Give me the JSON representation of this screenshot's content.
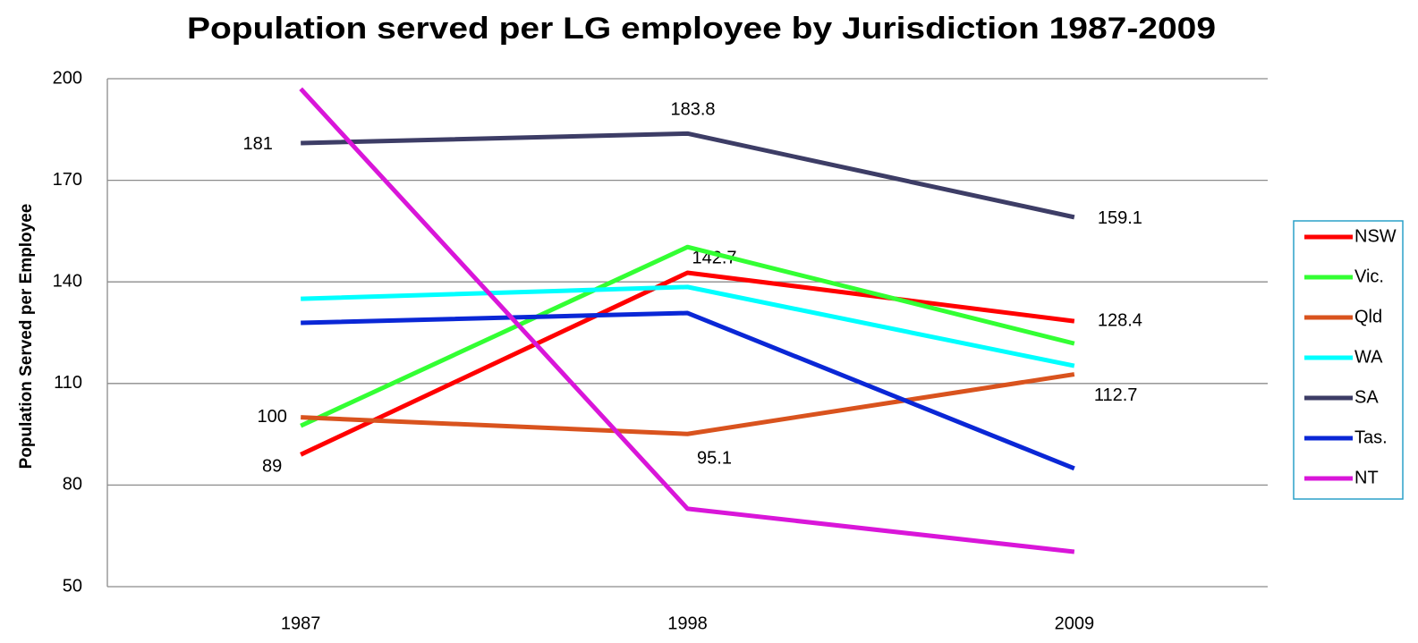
{
  "chart_data": {
    "type": "line",
    "title": "Population served per LG employee by Jurisdiction 1987-2009",
    "y_label": "Population Served per Employee",
    "categories": [
      "1987",
      "1998",
      "2009"
    ],
    "ylim": [
      50,
      200
    ],
    "yticks": [
      50,
      80,
      110,
      140,
      170,
      200
    ],
    "grid": true,
    "legend": "right",
    "series": [
      {
        "name": "NSW",
        "color": "#ff0000",
        "values": [
          89,
          142.7,
          128.4
        ],
        "data_labels": true
      },
      {
        "name": "Vic.",
        "color": "#33ff33",
        "values": [
          97.5,
          150.3,
          121.8
        ]
      },
      {
        "name": "Qld",
        "color": "#d9531e",
        "values": [
          100,
          95.1,
          112.7
        ],
        "data_labels": true
      },
      {
        "name": "WA",
        "color": "#00ffff",
        "values": [
          135,
          138.5,
          115.2
        ]
      },
      {
        "name": "SA",
        "color": "#3d3d66",
        "values": [
          181,
          183.8,
          159.1
        ],
        "data_labels": true
      },
      {
        "name": "Tas.",
        "color": "#0a27d6",
        "values": [
          127.9,
          130.8,
          84.9
        ]
      },
      {
        "name": "NT",
        "color": "#d916d9",
        "values": [
          197,
          73,
          60.3
        ]
      }
    ]
  }
}
